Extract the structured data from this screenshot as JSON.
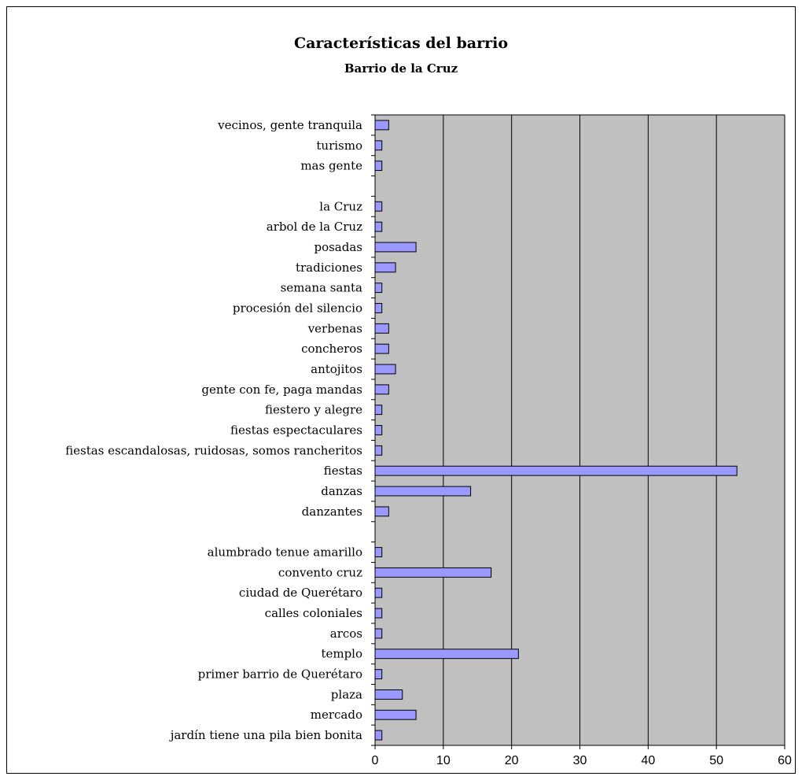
{
  "chart_data": {
    "type": "bar",
    "orientation": "horizontal",
    "title": "Características del barrio",
    "subtitle": "Barrio de la Cruz",
    "xlabel": "",
    "ylabel": "",
    "xlim": [
      0,
      60
    ],
    "xticks": [
      "0",
      "10",
      "20",
      "30",
      "40",
      "50",
      "60"
    ],
    "grid": "vertical",
    "plot_background": "#c0c0c0",
    "bar_color": "#9999ff",
    "categories": [
      "vecinos, gente tranquila",
      "turismo",
      "mas gente",
      "",
      "la Cruz",
      "arbol de la Cruz",
      "posadas",
      "tradiciones",
      "semana santa",
      "procesión del silencio",
      "verbenas",
      "concheros",
      "antojitos",
      "gente con fe, paga mandas",
      "fiestero y alegre",
      "fiestas espectaculares",
      "fiestas escandalosas, ruidosas, somos rancheritos",
      "fiestas",
      "danzas",
      "danzantes",
      "",
      "alumbrado tenue amarillo",
      "convento cruz",
      "ciudad de Querétaro",
      "calles coloniales",
      "arcos",
      "templo",
      "primer barrio de Querétaro",
      "plaza",
      "mercado",
      "jardín tiene una pila bien bonita"
    ],
    "values": [
      2,
      1,
      1,
      null,
      1,
      1,
      6,
      3,
      1,
      1,
      2,
      2,
      3,
      2,
      1,
      1,
      1,
      53,
      14,
      2,
      null,
      1,
      17,
      1,
      1,
      1,
      21,
      1,
      4,
      6,
      1
    ]
  }
}
